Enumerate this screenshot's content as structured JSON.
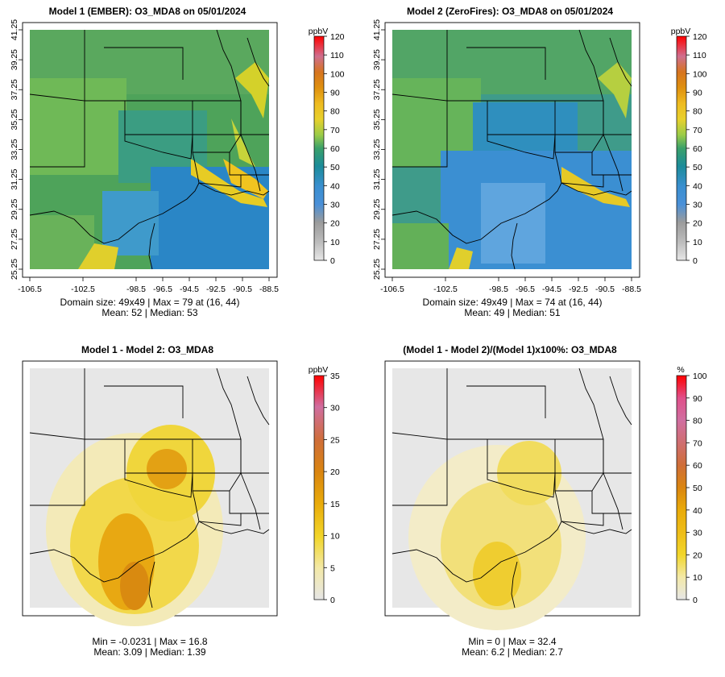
{
  "panels": [
    {
      "id": "p1",
      "title": "Model 1 (EMBER): O3_MDA8 on 05/01/2024",
      "unit": "ppbV",
      "colorbar": {
        "min": 0,
        "max": 120,
        "ticks": [
          0,
          10,
          20,
          30,
          40,
          50,
          60,
          70,
          80,
          90,
          100,
          110,
          120
        ]
      },
      "stats_line1": "Domain size: 49x49 | Max = 79 at (16, 44)",
      "stats_line2": "Mean: 52 |  Median: 53",
      "show_axes": true
    },
    {
      "id": "p2",
      "title": "Model 2 (ZeroFires): O3_MDA8 on 05/01/2024",
      "unit": "ppbV",
      "colorbar": {
        "min": 0,
        "max": 120,
        "ticks": [
          0,
          10,
          20,
          30,
          40,
          50,
          60,
          70,
          80,
          90,
          100,
          110,
          120
        ]
      },
      "stats_line1": "Domain size: 49x49 | Max = 74 at (16, 44)",
      "stats_line2": "Mean: 49 |  Median: 51",
      "show_axes": true
    },
    {
      "id": "p3",
      "title": "Model 1 - Model 2: O3_MDA8",
      "unit": "ppbV",
      "colorbar": {
        "min": 0,
        "max": 35,
        "ticks": [
          0,
          5,
          10,
          15,
          20,
          25,
          30,
          35
        ]
      },
      "stats_line1": "Min = -0.0231 | Max = 16.8",
      "stats_line2": "Mean: 3.09 |  Median: 1.39",
      "show_axes": false
    },
    {
      "id": "p4",
      "title": "(Model 1 - Model 2)/(Model 1)x100%: O3_MDA8",
      "unit": "%",
      "colorbar": {
        "min": 0,
        "max": 100,
        "ticks": [
          0,
          10,
          20,
          30,
          40,
          50,
          60,
          70,
          80,
          90,
          100
        ]
      },
      "stats_line1": "Min = 0 | Max = 32.4",
      "stats_line2": "Mean: 6.2 |  Median: 2.7",
      "show_axes": false
    }
  ],
  "x_ticks": [
    "-106.5",
    "-102.5",
    "-98.5",
    "-96.5",
    "-94.5",
    "-92.5",
    "-90.5",
    "-88.5"
  ],
  "x_tick_values": [
    -106.5,
    -102.5,
    -98.5,
    -96.5,
    -94.5,
    -92.5,
    -90.5,
    -88.5
  ],
  "y_ticks": [
    "25.25",
    "27.25",
    "29.25",
    "31.25",
    "33.25",
    "35.25",
    "37.25",
    "39.25",
    "41.25"
  ],
  "y_tick_values": [
    25.25,
    27.25,
    29.25,
    31.25,
    33.25,
    35.25,
    37.25,
    39.25,
    41.25
  ],
  "colors": {
    "scale": [
      "#e6e6e6",
      "#a4a4a4",
      "#3e8fd6",
      "#1f8ca0",
      "#43a05a",
      "#8ec84a",
      "#d9d12c",
      "#efc020",
      "#e0960c",
      "#d7791f",
      "#cc6d8a",
      "#e14a8a",
      "#ff0000"
    ],
    "diff_scale": [
      "#e6e6e6",
      "#f3e7a0",
      "#f0d320",
      "#e6a80a",
      "#d8860e",
      "#cf7030",
      "#cf6da0",
      "#ff0000"
    ],
    "border": "#000000"
  }
}
